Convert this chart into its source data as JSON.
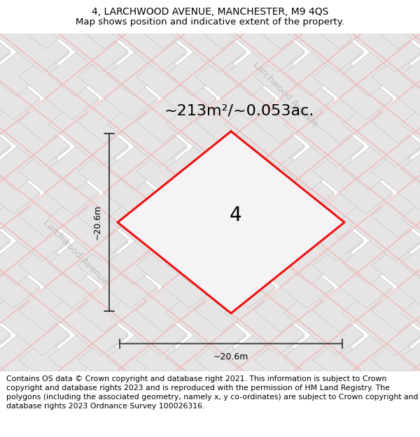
{
  "title": "4, LARCHWOOD AVENUE, MANCHESTER, M9 4QS",
  "subtitle": "Map shows position and indicative extent of the property.",
  "area_label": "~213m²/~0.053ac.",
  "property_number": "4",
  "dim_h": "~20.6m",
  "dim_w": "~20.6m",
  "footer": "Contains OS data © Crown copyright and database right 2021. This information is subject to Crown copyright and database rights 2023 and is reproduced with the permission of HM Land Registry. The polygons (including the associated geometry, namely x, y co-ordinates) are subject to Crown copyright and database rights 2023 Ordnance Survey 100026316.",
  "map_bg": "#f2f0f0",
  "diamond_color": "#ee1111",
  "street_label": "Larchwood Avenue",
  "title_fontsize": 10,
  "subtitle_fontsize": 9.5,
  "area_fontsize": 16,
  "dim_fontsize": 9,
  "property_fontsize": 20,
  "footer_fontsize": 7.8,
  "tile_face": "#e6e4e4",
  "tile_edge": "#d0cdcd",
  "pink_line": "#f0b8b8",
  "street_color": "#c0bcbc"
}
